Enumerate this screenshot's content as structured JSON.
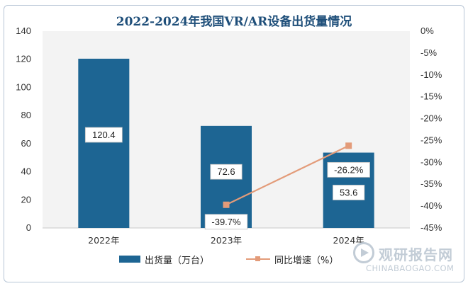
{
  "chart_data": {
    "type": "bar",
    "title": "2022-2024年我国VR/AR设备出货量情况",
    "categories": [
      "2022年",
      "2023年",
      "2024年"
    ],
    "series": [
      {
        "name": "出货量（万台）",
        "type": "bar",
        "axis": "left",
        "values": [
          120.4,
          72.6,
          53.6
        ],
        "labels": [
          "120.4",
          "72.6",
          "53.6"
        ]
      },
      {
        "name": "同比增速（%）",
        "type": "line",
        "axis": "right",
        "values": [
          null,
          -39.7,
          -26.2
        ],
        "labels": [
          "",
          "-39.7%",
          "-26.2%"
        ]
      }
    ],
    "y_left": {
      "min": 0,
      "max": 140,
      "step": 20,
      "ticks": [
        "0",
        "20",
        "40",
        "60",
        "80",
        "100",
        "120",
        "140"
      ]
    },
    "y_right": {
      "min": -45,
      "max": 0,
      "step": 5,
      "ticks": [
        "-45%",
        "-40%",
        "-35%",
        "-30%",
        "-25%",
        "-20%",
        "-15%",
        "-10%",
        "-5%",
        "0%"
      ]
    },
    "legend_position": "bottom",
    "grid": false,
    "colors": {
      "bar": "#1d6593",
      "line": "#e39b79",
      "title": "#1f4f7a",
      "plot_bg": "#f3f3f3"
    }
  },
  "watermark": {
    "brand_cn": "观研报告网",
    "brand_en": "CHINABAOGAO.COM",
    "icon": "play-logo-icon"
  }
}
